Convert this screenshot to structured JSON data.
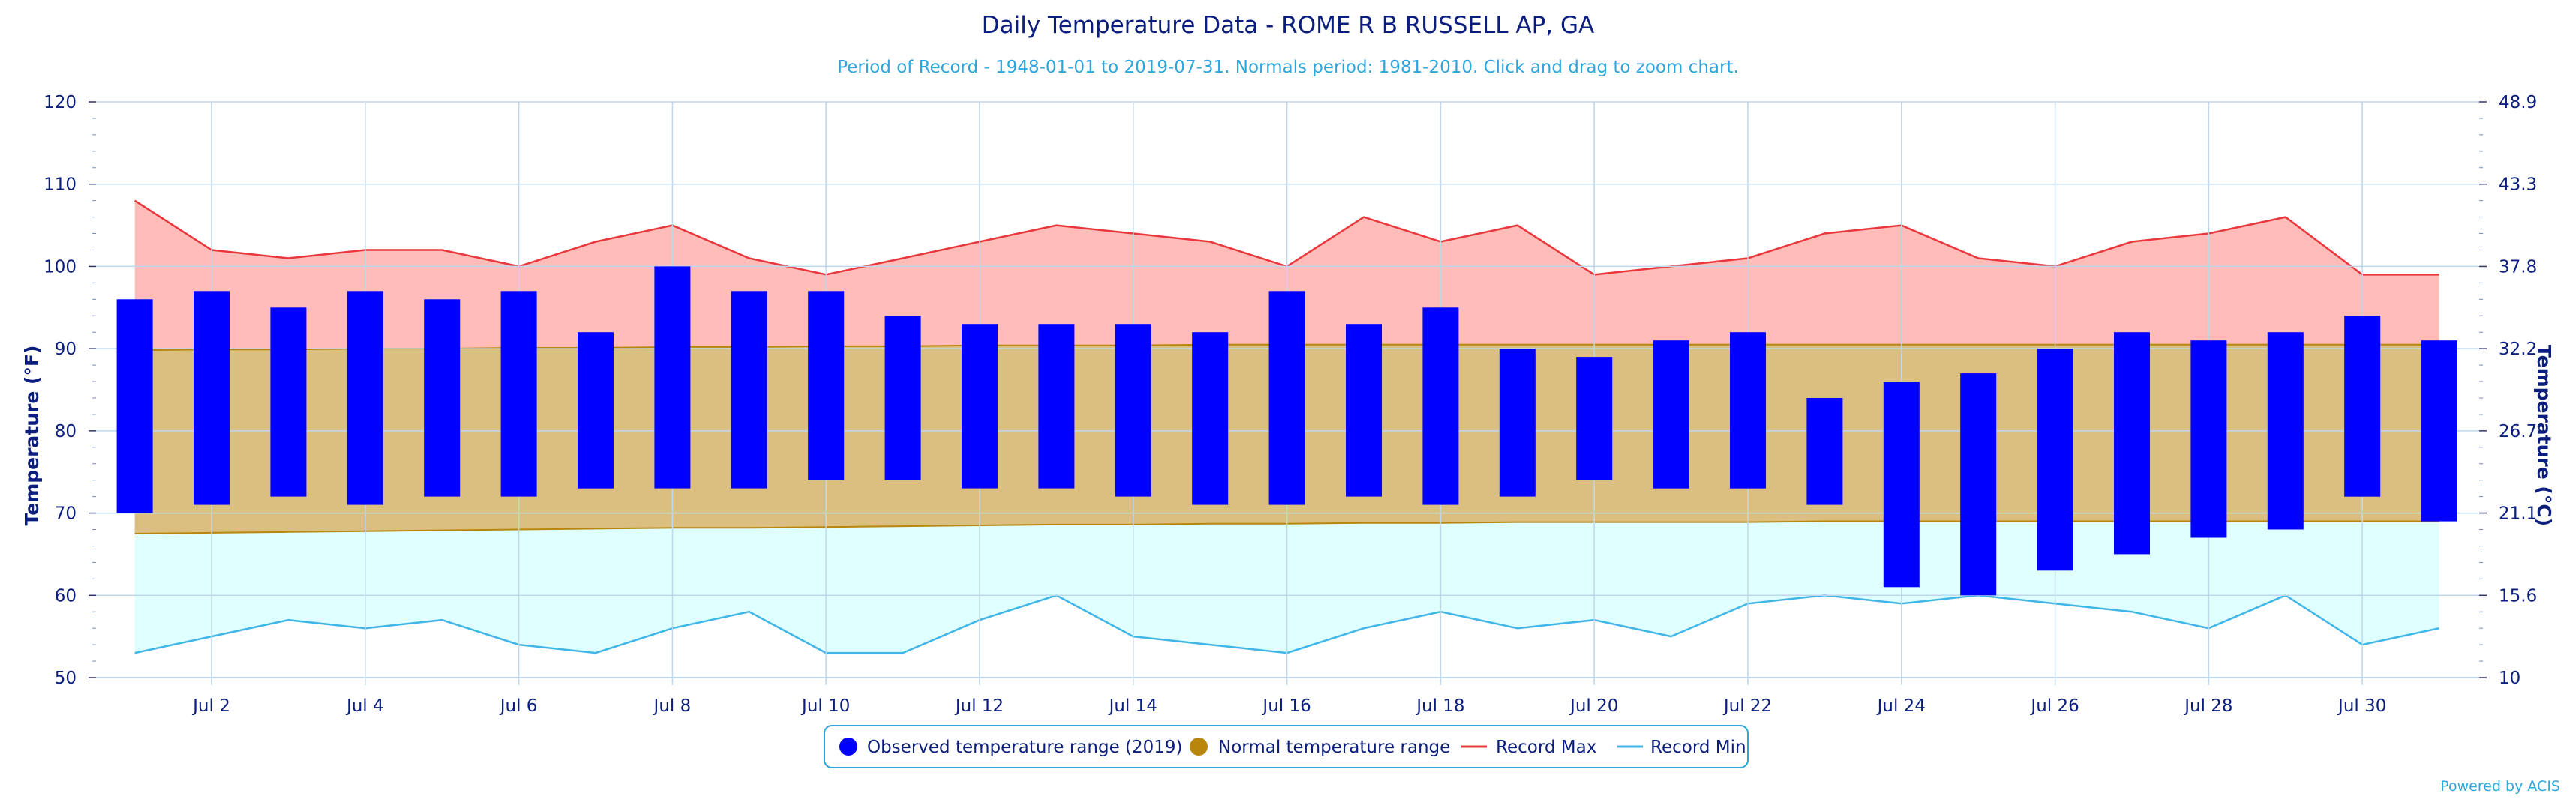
{
  "chart_data": {
    "type": "bar",
    "title": "Daily Temperature Data - ROME R B RUSSELL AP, GA",
    "subtitle": "Period of Record - 1948-01-01 to 2019-07-31. Normals period: 1981-2010. Click and drag to zoom chart.",
    "ylabel": "Temperature (°F)",
    "ylabel_right": "Temperature (°C)",
    "ylim": [
      50,
      120
    ],
    "yticks": [
      "50",
      "60",
      "70",
      "80",
      "90",
      "100",
      "110",
      "120"
    ],
    "yticks_right": [
      "10",
      "15.6",
      "21.1",
      "26.7",
      "32.2",
      "37.8",
      "43.3",
      "48.9"
    ],
    "x": [
      1,
      2,
      3,
      4,
      5,
      6,
      7,
      8,
      9,
      10,
      11,
      12,
      13,
      14,
      15,
      16,
      17,
      18,
      19,
      20,
      21,
      22,
      23,
      24,
      25,
      26,
      27,
      28,
      29,
      30,
      31
    ],
    "xticks": [
      {
        "day": 2,
        "label": "Jul 2"
      },
      {
        "day": 4,
        "label": "Jul 4"
      },
      {
        "day": 6,
        "label": "Jul 6"
      },
      {
        "day": 8,
        "label": "Jul 8"
      },
      {
        "day": 10,
        "label": "Jul 10"
      },
      {
        "day": 12,
        "label": "Jul 12"
      },
      {
        "day": 14,
        "label": "Jul 14"
      },
      {
        "day": 16,
        "label": "Jul 16"
      },
      {
        "day": 18,
        "label": "Jul 18"
      },
      {
        "day": 20,
        "label": "Jul 20"
      },
      {
        "day": 22,
        "label": "Jul 22"
      },
      {
        "day": 24,
        "label": "Jul 24"
      },
      {
        "day": 26,
        "label": "Jul 26"
      },
      {
        "day": 28,
        "label": "Jul 28"
      },
      {
        "day": 30,
        "label": "Jul 30"
      }
    ],
    "grid": true,
    "legend_position": "bottom-center",
    "series": [
      {
        "name": "Observed temperature range (2019)",
        "kind": "floating-bar",
        "color": "#0000ff",
        "high": [
          96,
          97,
          95,
          97,
          96,
          97,
          92,
          100,
          97,
          97,
          94,
          93,
          93,
          93,
          92,
          97,
          93,
          95,
          90,
          89,
          91,
          92,
          84,
          86,
          87,
          90,
          92,
          91,
          92,
          94,
          91
        ],
        "low": [
          70,
          71,
          72,
          71,
          72,
          72,
          73,
          73,
          73,
          74,
          74,
          73,
          73,
          72,
          71,
          71,
          72,
          71,
          72,
          74,
          73,
          73,
          71,
          61,
          60,
          63,
          65,
          67,
          68,
          72,
          69
        ]
      },
      {
        "name": "Normal temperature range",
        "kind": "band",
        "color": "#b8860b",
        "high": [
          89.8,
          89.9,
          89.9,
          90.0,
          90.0,
          90.1,
          90.1,
          90.2,
          90.2,
          90.3,
          90.3,
          90.4,
          90.4,
          90.4,
          90.5,
          90.5,
          90.5,
          90.5,
          90.5,
          90.5,
          90.5,
          90.5,
          90.5,
          90.5,
          90.5,
          90.5,
          90.5,
          90.5,
          90.5,
          90.5,
          90.5
        ],
        "low": [
          67.5,
          67.6,
          67.7,
          67.8,
          67.9,
          68.0,
          68.1,
          68.2,
          68.2,
          68.3,
          68.4,
          68.5,
          68.6,
          68.6,
          68.7,
          68.7,
          68.8,
          68.8,
          68.9,
          68.9,
          68.9,
          68.9,
          69.0,
          69.0,
          69.0,
          69.0,
          69.0,
          69.0,
          69.0,
          69.0,
          69.0
        ]
      },
      {
        "name": "Record Max",
        "kind": "line",
        "color": "#e8383d",
        "fill": "#ffbcb8",
        "values": [
          108,
          102,
          101,
          102,
          102,
          100,
          103,
          105,
          101,
          99,
          101,
          103,
          105,
          104,
          103,
          100,
          106,
          103,
          105,
          99,
          100,
          101,
          104,
          105,
          101,
          100,
          103,
          104,
          106,
          99,
          99
        ]
      },
      {
        "name": "Record Min",
        "kind": "line",
        "color": "#3fb5e8",
        "fill": "#e0ffff",
        "values": [
          53,
          55,
          57,
          56,
          57,
          54,
          53,
          56,
          58,
          53,
          53,
          57,
          60,
          55,
          54,
          53,
          56,
          58,
          56,
          57,
          55,
          59,
          60,
          59,
          60,
          59,
          58,
          56,
          60,
          54,
          56
        ]
      }
    ]
  },
  "colors": {
    "title": "#0b1e7d",
    "subtitle": "#2ea6dc",
    "observed": "#0000ff",
    "normal_fill": "#dbbf80",
    "normal_line": "#b8860b",
    "record_max_line": "#e8383d",
    "record_max_fill": "#ffbcb8",
    "record_min_line": "#3fb5e8",
    "record_min_fill": "#e0ffff",
    "grid": "#bfd7ec",
    "legend_border": "#2ea6dc"
  },
  "credit": "Powered by ACIS"
}
